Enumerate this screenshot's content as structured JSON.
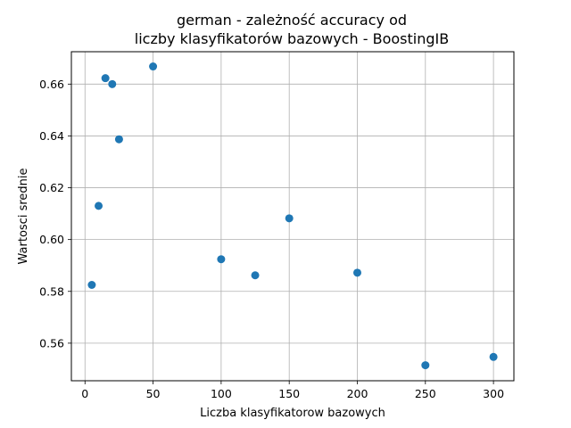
{
  "chart_data": {
    "type": "scatter",
    "title_lines": [
      "german - zależność accuracy od",
      "liczby klasyfikatorów bazowych - BoostingIB"
    ],
    "xlabel": "Liczba klasyfikatorow bazowych",
    "ylabel": "Wartosci srednie",
    "xlim": [
      -10,
      315
    ],
    "ylim": [
      0.5455,
      0.6725
    ],
    "xticks": [
      0,
      50,
      100,
      150,
      200,
      250,
      300
    ],
    "yticks": [
      0.56,
      0.58,
      0.6,
      0.62,
      0.64,
      0.66
    ],
    "ytick_labels": [
      "0.56",
      "0.58",
      "0.60",
      "0.62",
      "0.64",
      "0.66"
    ],
    "grid": true,
    "marker_color": "#1f77b4",
    "points": [
      {
        "x": 5,
        "y": 0.5825
      },
      {
        "x": 10,
        "y": 0.613
      },
      {
        "x": 15,
        "y": 0.6623
      },
      {
        "x": 20,
        "y": 0.66
      },
      {
        "x": 25,
        "y": 0.6387
      },
      {
        "x": 50,
        "y": 0.6668
      },
      {
        "x": 100,
        "y": 0.5924
      },
      {
        "x": 125,
        "y": 0.5862
      },
      {
        "x": 150,
        "y": 0.6082
      },
      {
        "x": 200,
        "y": 0.5872
      },
      {
        "x": 250,
        "y": 0.5515
      },
      {
        "x": 300,
        "y": 0.5547
      }
    ]
  }
}
